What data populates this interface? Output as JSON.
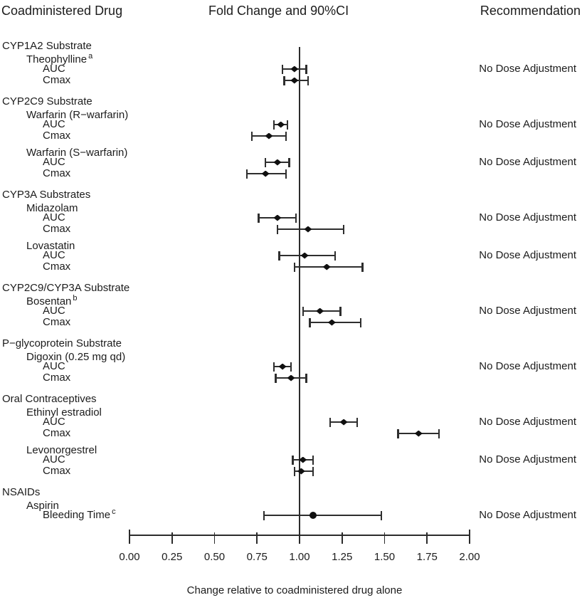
{
  "header": {
    "left": "Coadministered Drug",
    "center": "Fold Change and 90%CI",
    "right": "Recommendation"
  },
  "colors": {
    "background": "#ffffff",
    "foreground": "#1c1c1c",
    "marker": "#101010",
    "line": "#2e2e2e"
  },
  "chart_data": {
    "type": "scatter",
    "subtype": "forest-plot",
    "title": "Fold Change and 90%CI",
    "xlabel": "Change relative to coadministered drug alone",
    "xlim": [
      0.0,
      2.0
    ],
    "reference_line": 1.0,
    "grid": false,
    "xticks": [
      {
        "value": 0.0,
        "label": "0.00"
      },
      {
        "value": 0.25,
        "label": "0.25"
      },
      {
        "value": 0.5,
        "label": "0.50"
      },
      {
        "value": 0.75,
        "label": "0.75"
      },
      {
        "value": 1.0,
        "label": "1.00"
      },
      {
        "value": 1.25,
        "label": "1.25"
      },
      {
        "value": 1.5,
        "label": "1.50"
      },
      {
        "value": 1.75,
        "label": "1.75"
      },
      {
        "value": 2.0,
        "label": "2.00"
      }
    ],
    "groups": [
      {
        "category": "CYP1A2 Substrate",
        "drugs": [
          {
            "name": "Theophylline",
            "sup": "a",
            "recommendation": "No Dose Adjustment",
            "rows": [
              {
                "label": "AUC",
                "sup": "",
                "marker": "diamond",
                "value": 0.97,
                "ci_low": 0.9,
                "ci_high": 1.04
              },
              {
                "label": "Cmax",
                "sup": "",
                "marker": "diamond",
                "value": 0.97,
                "ci_low": 0.91,
                "ci_high": 1.05
              }
            ]
          }
        ]
      },
      {
        "category": "CYP2C9 Substrate",
        "drugs": [
          {
            "name": "Warfarin (R−warfarin)",
            "sup": "",
            "recommendation": "No Dose Adjustment",
            "rows": [
              {
                "label": "AUC",
                "sup": "",
                "marker": "diamond",
                "value": 0.89,
                "ci_low": 0.85,
                "ci_high": 0.93
              },
              {
                "label": "Cmax",
                "sup": "",
                "marker": "diamond",
                "value": 0.82,
                "ci_low": 0.72,
                "ci_high": 0.92
              }
            ]
          },
          {
            "name": "Warfarin (S−warfarin)",
            "sup": "",
            "recommendation": "No Dose Adjustment",
            "rows": [
              {
                "label": "AUC",
                "sup": "",
                "marker": "diamond",
                "value": 0.87,
                "ci_low": 0.8,
                "ci_high": 0.94
              },
              {
                "label": "Cmax",
                "sup": "",
                "marker": "diamond",
                "value": 0.8,
                "ci_low": 0.69,
                "ci_high": 0.92
              }
            ]
          }
        ]
      },
      {
        "category": "CYP3A Substrates",
        "drugs": [
          {
            "name": "Midazolam",
            "sup": "",
            "recommendation": "No Dose Adjustment",
            "rows": [
              {
                "label": "AUC",
                "sup": "",
                "marker": "diamond",
                "value": 0.87,
                "ci_low": 0.76,
                "ci_high": 0.98
              },
              {
                "label": "Cmax",
                "sup": "",
                "marker": "diamond",
                "value": 1.05,
                "ci_low": 0.87,
                "ci_high": 1.26
              }
            ]
          },
          {
            "name": "Lovastatin",
            "sup": "",
            "recommendation": "No Dose Adjustment",
            "rows": [
              {
                "label": "AUC",
                "sup": "",
                "marker": "diamond",
                "value": 1.03,
                "ci_low": 0.88,
                "ci_high": 1.21
              },
              {
                "label": "Cmax",
                "sup": "",
                "marker": "diamond",
                "value": 1.16,
                "ci_low": 0.97,
                "ci_high": 1.37
              }
            ]
          }
        ]
      },
      {
        "category": "CYP2C9/CYP3A Substrate",
        "drugs": [
          {
            "name": "Bosentan",
            "sup": "b",
            "recommendation": "No Dose Adjustment",
            "rows": [
              {
                "label": "AUC",
                "sup": "",
                "marker": "diamond",
                "value": 1.12,
                "ci_low": 1.02,
                "ci_high": 1.24
              },
              {
                "label": "Cmax",
                "sup": "",
                "marker": "diamond",
                "value": 1.19,
                "ci_low": 1.06,
                "ci_high": 1.36
              }
            ]
          }
        ]
      },
      {
        "category": "P−glycoprotein Substrate",
        "drugs": [
          {
            "name": "Digoxin (0.25 mg qd)",
            "sup": "",
            "recommendation": "No Dose Adjustment",
            "rows": [
              {
                "label": "AUC",
                "sup": "",
                "marker": "diamond",
                "value": 0.9,
                "ci_low": 0.85,
                "ci_high": 0.95
              },
              {
                "label": "Cmax",
                "sup": "",
                "marker": "diamond",
                "value": 0.95,
                "ci_low": 0.86,
                "ci_high": 1.04
              }
            ]
          }
        ]
      },
      {
        "category": "Oral Contraceptives",
        "drugs": [
          {
            "name": "Ethinyl estradiol",
            "sup": "",
            "recommendation": "No Dose Adjustment",
            "rows": [
              {
                "label": "AUC",
                "sup": "",
                "marker": "diamond",
                "value": 1.26,
                "ci_low": 1.18,
                "ci_high": 1.34
              },
              {
                "label": "Cmax",
                "sup": "",
                "marker": "diamond",
                "value": 1.7,
                "ci_low": 1.58,
                "ci_high": 1.82
              }
            ]
          },
          {
            "name": "Levonorgestrel",
            "sup": "",
            "recommendation": "No Dose Adjustment",
            "rows": [
              {
                "label": "AUC",
                "sup": "",
                "marker": "diamond",
                "value": 1.02,
                "ci_low": 0.96,
                "ci_high": 1.08
              },
              {
                "label": "Cmax",
                "sup": "",
                "marker": "diamond",
                "value": 1.01,
                "ci_low": 0.97,
                "ci_high": 1.08
              }
            ]
          }
        ]
      },
      {
        "category": "NSAIDs",
        "drugs": [
          {
            "name": "Aspirin",
            "sup": "",
            "recommendation": "No Dose Adjustment",
            "rows": [
              {
                "label": "Bleeding Time",
                "sup": "c",
                "marker": "circle",
                "value": 1.08,
                "ci_low": 0.79,
                "ci_high": 1.48
              }
            ]
          }
        ]
      }
    ]
  }
}
